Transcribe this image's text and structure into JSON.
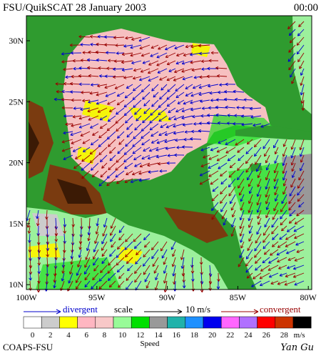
{
  "header": {
    "title": "FSU/QuikSCAT  28 January 2003",
    "time": "00:00"
  },
  "map": {
    "lat_labels": [
      "30N",
      "25N",
      "20N",
      "15N",
      "10N"
    ],
    "lon_labels": [
      "100W",
      "95W",
      "90W",
      "85W",
      "80W"
    ]
  },
  "legend": {
    "divergent": "divergent",
    "scale": "scale",
    "scale_value": "10 m/s",
    "convergent": "convergent"
  },
  "colorbar": {
    "ticks": [
      0,
      2,
      4,
      6,
      8,
      10,
      12,
      14,
      16,
      18,
      20,
      22,
      24,
      26,
      28
    ],
    "unit": "m/s",
    "label": "Speed"
  },
  "footer": {
    "credit": "COAPS-FSU",
    "author": "Yan Gu"
  }
}
